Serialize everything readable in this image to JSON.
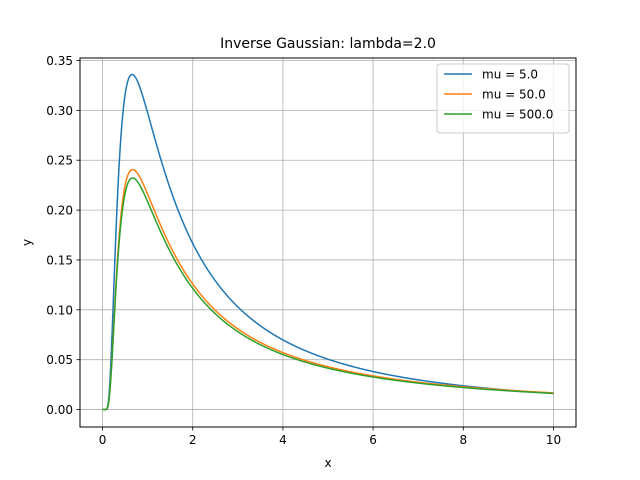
{
  "chart_data": {
    "type": "line",
    "title": "Inverse Gaussian:  lambda=2.0",
    "xlabel": "x",
    "ylabel": "y",
    "xlim": [
      -0.5,
      10.5
    ],
    "ylim": [
      -0.0175,
      0.3525
    ],
    "xticks": [
      0,
      2,
      4,
      6,
      8,
      10
    ],
    "xtick_labels": [
      "0",
      "2",
      "4",
      "6",
      "8",
      "10"
    ],
    "yticks": [
      0.0,
      0.05,
      0.1,
      0.15,
      0.2,
      0.25,
      0.3,
      0.35
    ],
    "ytick_labels": [
      "0.00",
      "0.05",
      "0.10",
      "0.15",
      "0.20",
      "0.25",
      "0.30",
      "0.35"
    ],
    "grid": true,
    "legend_position": "top-right",
    "lambda": 2.0,
    "x_range": [
      0,
      10
    ],
    "series": [
      {
        "name": "mu = 5.0",
        "mu": 5.0,
        "color": "#1f77b4"
      },
      {
        "name": "mu = 50.0",
        "mu": 50.0,
        "color": "#ff7f0e"
      },
      {
        "name": "mu = 500.0",
        "mu": 500.0,
        "color": "#2ca02c"
      }
    ]
  }
}
